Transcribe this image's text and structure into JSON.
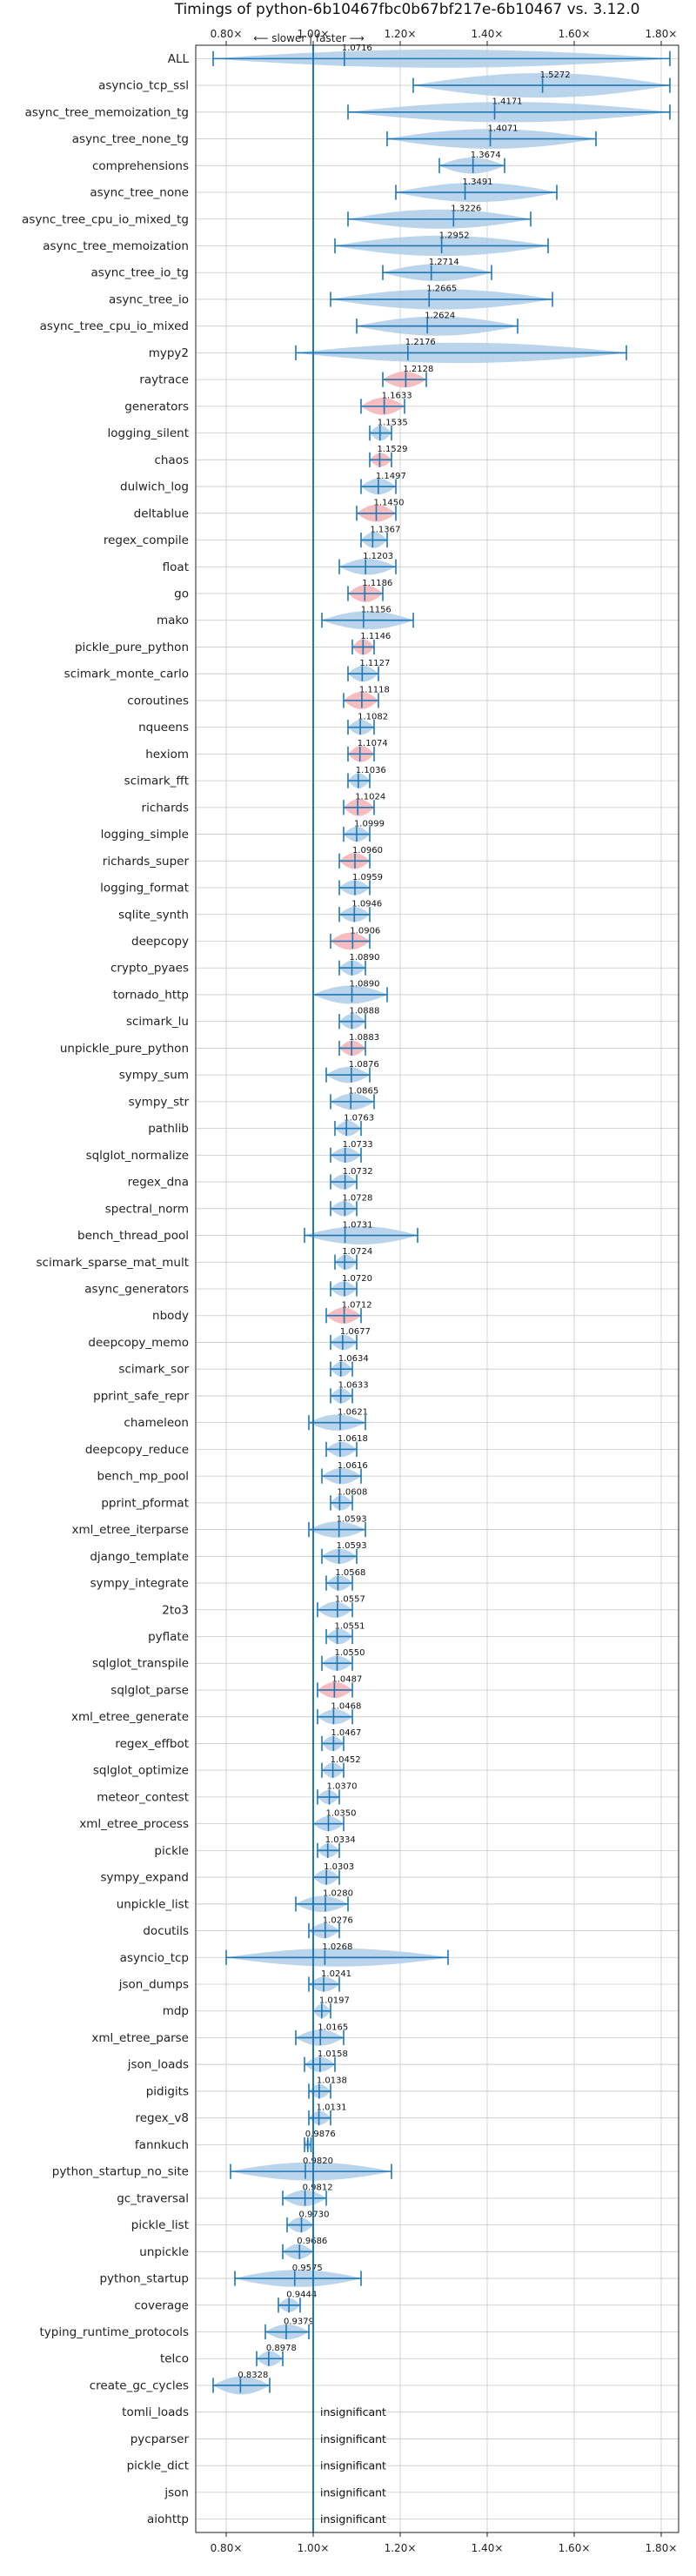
{
  "chart_data": {
    "type": "violin",
    "title": "Timings of python-6b10467fbc0b67bf217e-6b10467 vs. 3.12.0",
    "direction_annotation": "⟵ slower | faster ⟶",
    "xlim": [
      0.73,
      1.84
    ],
    "xticks": [
      0.8,
      1.0,
      1.2,
      1.4,
      1.6,
      1.8
    ],
    "xtick_labels": [
      "0.80×",
      "1.00×",
      "1.20×",
      "1.40×",
      "1.60×",
      "1.80×"
    ],
    "reference_line": 1.0,
    "grid": true,
    "colors": {
      "violin": "#aecde8",
      "violin_highlight": "#f4b0b4",
      "whisker": "#1f77b4",
      "reference": "#1f77b4",
      "grid": "#c8c8c8"
    },
    "insignificant_label": "insignificant",
    "benchmarks": [
      {
        "name": "ALL",
        "value": 1.0716,
        "label": "1.0716",
        "lo": 0.77,
        "hi": 1.82,
        "spread": 0.34
      },
      {
        "name": "asyncio_tcp_ssl",
        "value": 1.5272,
        "label": "1.5272",
        "lo": 1.23,
        "hi": 1.82,
        "spread": 0.46
      },
      {
        "name": "async_tree_memoization_tg",
        "value": 1.4171,
        "label": "1.4171",
        "lo": 1.08,
        "hi": 1.82,
        "spread": 0.38
      },
      {
        "name": "async_tree_none_tg",
        "value": 1.4071,
        "label": "1.4071",
        "lo": 1.17,
        "hi": 1.65,
        "spread": 0.37
      },
      {
        "name": "comprehensions",
        "value": 1.3674,
        "label": "1.3674",
        "lo": 1.29,
        "hi": 1.44,
        "spread": 0.3
      },
      {
        "name": "async_tree_none",
        "value": 1.3491,
        "label": "1.3491",
        "lo": 1.19,
        "hi": 1.56,
        "spread": 0.36
      },
      {
        "name": "async_tree_cpu_io_mixed_tg",
        "value": 1.3226,
        "label": "1.3226",
        "lo": 1.08,
        "hi": 1.5,
        "spread": 0.36
      },
      {
        "name": "async_tree_memoization",
        "value": 1.2952,
        "label": "1.2952",
        "lo": 1.05,
        "hi": 1.54,
        "spread": 0.38
      },
      {
        "name": "async_tree_io_tg",
        "value": 1.2714,
        "label": "1.2714",
        "lo": 1.16,
        "hi": 1.41,
        "spread": 0.32
      },
      {
        "name": "async_tree_io",
        "value": 1.2665,
        "label": "1.2665",
        "lo": 1.04,
        "hi": 1.55,
        "spread": 0.38
      },
      {
        "name": "async_tree_cpu_io_mixed",
        "value": 1.2624,
        "label": "1.2624",
        "lo": 1.1,
        "hi": 1.47,
        "spread": 0.36
      },
      {
        "name": "mypy2",
        "value": 1.2176,
        "label": "1.2176",
        "lo": 0.96,
        "hi": 1.72,
        "spread": 0.38
      },
      {
        "name": "raytrace",
        "value": 1.2128,
        "label": "1.2128",
        "lo": 1.16,
        "hi": 1.26,
        "spread": 0.3,
        "highlight": true
      },
      {
        "name": "generators",
        "value": 1.1633,
        "label": "1.1633",
        "lo": 1.11,
        "hi": 1.21,
        "spread": 0.32,
        "highlight": true
      },
      {
        "name": "logging_silent",
        "value": 1.1535,
        "label": "1.1535",
        "lo": 1.13,
        "hi": 1.18,
        "spread": 0.28
      },
      {
        "name": "chaos",
        "value": 1.1529,
        "label": "1.1529",
        "lo": 1.13,
        "hi": 1.18,
        "spread": 0.26,
        "highlight": true
      },
      {
        "name": "dulwich_log",
        "value": 1.1497,
        "label": "1.1497",
        "lo": 1.11,
        "hi": 1.19,
        "spread": 0.3
      },
      {
        "name": "deltablue",
        "value": 1.145,
        "label": "1.1450",
        "lo": 1.1,
        "hi": 1.19,
        "spread": 0.32,
        "highlight": true
      },
      {
        "name": "regex_compile",
        "value": 1.1367,
        "label": "1.1367",
        "lo": 1.11,
        "hi": 1.17,
        "spread": 0.3
      },
      {
        "name": "float",
        "value": 1.1203,
        "label": "1.1203",
        "lo": 1.06,
        "hi": 1.19,
        "spread": 0.3
      },
      {
        "name": "go",
        "value": 1.1186,
        "label": "1.1186",
        "lo": 1.08,
        "hi": 1.16,
        "spread": 0.32,
        "highlight": true
      },
      {
        "name": "mako",
        "value": 1.1156,
        "label": "1.1156",
        "lo": 1.02,
        "hi": 1.23,
        "spread": 0.34
      },
      {
        "name": "pickle_pure_python",
        "value": 1.1146,
        "label": "1.1146",
        "lo": 1.09,
        "hi": 1.14,
        "spread": 0.3,
        "highlight": true
      },
      {
        "name": "scimark_monte_carlo",
        "value": 1.1127,
        "label": "1.1127",
        "lo": 1.08,
        "hi": 1.15,
        "spread": 0.3
      },
      {
        "name": "coroutines",
        "value": 1.1118,
        "label": "1.1118",
        "lo": 1.07,
        "hi": 1.15,
        "spread": 0.32,
        "highlight": true
      },
      {
        "name": "nqueens",
        "value": 1.1082,
        "label": "1.1082",
        "lo": 1.08,
        "hi": 1.14,
        "spread": 0.28
      },
      {
        "name": "hexiom",
        "value": 1.1074,
        "label": "1.1074",
        "lo": 1.08,
        "hi": 1.14,
        "spread": 0.3,
        "highlight": true
      },
      {
        "name": "scimark_fft",
        "value": 1.1036,
        "label": "1.1036",
        "lo": 1.08,
        "hi": 1.13,
        "spread": 0.28
      },
      {
        "name": "richards",
        "value": 1.1024,
        "label": "1.1024",
        "lo": 1.07,
        "hi": 1.14,
        "spread": 0.32,
        "highlight": true
      },
      {
        "name": "logging_simple",
        "value": 1.0999,
        "label": "1.0999",
        "lo": 1.07,
        "hi": 1.13,
        "spread": 0.28
      },
      {
        "name": "richards_super",
        "value": 1.096,
        "label": "1.0960",
        "lo": 1.06,
        "hi": 1.13,
        "spread": 0.3,
        "highlight": true
      },
      {
        "name": "logging_format",
        "value": 1.0959,
        "label": "1.0959",
        "lo": 1.06,
        "hi": 1.13,
        "spread": 0.28
      },
      {
        "name": "sqlite_synth",
        "value": 1.0946,
        "label": "1.0946",
        "lo": 1.06,
        "hi": 1.13,
        "spread": 0.28
      },
      {
        "name": "deepcopy",
        "value": 1.0906,
        "label": "1.0906",
        "lo": 1.04,
        "hi": 1.13,
        "spread": 0.32,
        "highlight": true
      },
      {
        "name": "crypto_pyaes",
        "value": 1.089,
        "label": "1.0890",
        "lo": 1.06,
        "hi": 1.12,
        "spread": 0.28
      },
      {
        "name": "tornado_http",
        "value": 1.089,
        "label": "1.0890",
        "lo": 1.0,
        "hi": 1.17,
        "spread": 0.34
      },
      {
        "name": "scimark_lu",
        "value": 1.0888,
        "label": "1.0888",
        "lo": 1.06,
        "hi": 1.12,
        "spread": 0.28
      },
      {
        "name": "unpickle_pure_python",
        "value": 1.0883,
        "label": "1.0883",
        "lo": 1.06,
        "hi": 1.12,
        "spread": 0.28,
        "highlight": true
      },
      {
        "name": "sympy_sum",
        "value": 1.0876,
        "label": "1.0876",
        "lo": 1.03,
        "hi": 1.13,
        "spread": 0.3
      },
      {
        "name": "sympy_str",
        "value": 1.0865,
        "label": "1.0865",
        "lo": 1.04,
        "hi": 1.14,
        "spread": 0.3
      },
      {
        "name": "pathlib",
        "value": 1.0763,
        "label": "1.0763",
        "lo": 1.05,
        "hi": 1.11,
        "spread": 0.28
      },
      {
        "name": "sqlglot_normalize",
        "value": 1.0733,
        "label": "1.0733",
        "lo": 1.04,
        "hi": 1.11,
        "spread": 0.28
      },
      {
        "name": "regex_dna",
        "value": 1.0732,
        "label": "1.0732",
        "lo": 1.04,
        "hi": 1.1,
        "spread": 0.28
      },
      {
        "name": "spectral_norm",
        "value": 1.0728,
        "label": "1.0728",
        "lo": 1.04,
        "hi": 1.1,
        "spread": 0.28
      },
      {
        "name": "bench_thread_pool",
        "value": 1.0731,
        "label": "1.0731",
        "lo": 0.98,
        "hi": 1.24,
        "spread": 0.34
      },
      {
        "name": "scimark_sparse_mat_mult",
        "value": 1.0724,
        "label": "1.0724",
        "lo": 1.05,
        "hi": 1.1,
        "spread": 0.28
      },
      {
        "name": "async_generators",
        "value": 1.072,
        "label": "1.0720",
        "lo": 1.04,
        "hi": 1.1,
        "spread": 0.28
      },
      {
        "name": "nbody",
        "value": 1.0712,
        "label": "1.0712",
        "lo": 1.03,
        "hi": 1.11,
        "spread": 0.3,
        "highlight": true
      },
      {
        "name": "deepcopy_memo",
        "value": 1.0677,
        "label": "1.0677",
        "lo": 1.04,
        "hi": 1.1,
        "spread": 0.28
      },
      {
        "name": "scimark_sor",
        "value": 1.0634,
        "label": "1.0634",
        "lo": 1.04,
        "hi": 1.09,
        "spread": 0.28
      },
      {
        "name": "pprint_safe_repr",
        "value": 1.0633,
        "label": "1.0633",
        "lo": 1.04,
        "hi": 1.09,
        "spread": 0.28
      },
      {
        "name": "chameleon",
        "value": 1.0621,
        "label": "1.0621",
        "lo": 0.99,
        "hi": 1.12,
        "spread": 0.3
      },
      {
        "name": "deepcopy_reduce",
        "value": 1.0618,
        "label": "1.0618",
        "lo": 1.03,
        "hi": 1.1,
        "spread": 0.28
      },
      {
        "name": "bench_mp_pool",
        "value": 1.0616,
        "label": "1.0616",
        "lo": 1.02,
        "hi": 1.11,
        "spread": 0.3
      },
      {
        "name": "pprint_pformat",
        "value": 1.0608,
        "label": "1.0608",
        "lo": 1.04,
        "hi": 1.09,
        "spread": 0.28
      },
      {
        "name": "xml_etree_iterparse",
        "value": 1.0593,
        "label": "1.0593",
        "lo": 0.99,
        "hi": 1.12,
        "spread": 0.3
      },
      {
        "name": "django_template",
        "value": 1.0593,
        "label": "1.0593",
        "lo": 1.02,
        "hi": 1.1,
        "spread": 0.28
      },
      {
        "name": "sympy_integrate",
        "value": 1.0568,
        "label": "1.0568",
        "lo": 1.03,
        "hi": 1.09,
        "spread": 0.28
      },
      {
        "name": "2to3",
        "value": 1.0557,
        "label": "1.0557",
        "lo": 1.01,
        "hi": 1.09,
        "spread": 0.3
      },
      {
        "name": "pyflate",
        "value": 1.0551,
        "label": "1.0551",
        "lo": 1.03,
        "hi": 1.09,
        "spread": 0.28
      },
      {
        "name": "sqlglot_transpile",
        "value": 1.055,
        "label": "1.0550",
        "lo": 1.02,
        "hi": 1.09,
        "spread": 0.28
      },
      {
        "name": "sqlglot_parse",
        "value": 1.0487,
        "label": "1.0487",
        "lo": 1.01,
        "hi": 1.09,
        "spread": 0.3,
        "highlight": true
      },
      {
        "name": "xml_etree_generate",
        "value": 1.0468,
        "label": "1.0468",
        "lo": 1.01,
        "hi": 1.09,
        "spread": 0.28
      },
      {
        "name": "regex_effbot",
        "value": 1.0467,
        "label": "1.0467",
        "lo": 1.02,
        "hi": 1.07,
        "spread": 0.28
      },
      {
        "name": "sqlglot_optimize",
        "value": 1.0452,
        "label": "1.0452",
        "lo": 1.02,
        "hi": 1.07,
        "spread": 0.28
      },
      {
        "name": "meteor_contest",
        "value": 1.037,
        "label": "1.0370",
        "lo": 1.01,
        "hi": 1.06,
        "spread": 0.26
      },
      {
        "name": "xml_etree_process",
        "value": 1.035,
        "label": "1.0350",
        "lo": 1.0,
        "hi": 1.07,
        "spread": 0.28
      },
      {
        "name": "pickle",
        "value": 1.0334,
        "label": "1.0334",
        "lo": 1.01,
        "hi": 1.06,
        "spread": 0.26
      },
      {
        "name": "sympy_expand",
        "value": 1.0303,
        "label": "1.0303",
        "lo": 1.0,
        "hi": 1.06,
        "spread": 0.28
      },
      {
        "name": "unpickle_list",
        "value": 1.028,
        "label": "1.0280",
        "lo": 0.96,
        "hi": 1.08,
        "spread": 0.3
      },
      {
        "name": "docutils",
        "value": 1.0276,
        "label": "1.0276",
        "lo": 0.99,
        "hi": 1.06,
        "spread": 0.28
      },
      {
        "name": "asyncio_tcp",
        "value": 1.0268,
        "label": "1.0268",
        "lo": 0.8,
        "hi": 1.31,
        "spread": 0.34
      },
      {
        "name": "json_dumps",
        "value": 1.0241,
        "label": "1.0241",
        "lo": 0.99,
        "hi": 1.06,
        "spread": 0.28
      },
      {
        "name": "mdp",
        "value": 1.0197,
        "label": "1.0197",
        "lo": 1.0,
        "hi": 1.04,
        "spread": 0.26
      },
      {
        "name": "xml_etree_parse",
        "value": 1.0165,
        "label": "1.0165",
        "lo": 0.96,
        "hi": 1.07,
        "spread": 0.3
      },
      {
        "name": "json_loads",
        "value": 1.0158,
        "label": "1.0158",
        "lo": 0.98,
        "hi": 1.05,
        "spread": 0.28
      },
      {
        "name": "pidigits",
        "value": 1.0138,
        "label": "1.0138",
        "lo": 0.99,
        "hi": 1.04,
        "spread": 0.26
      },
      {
        "name": "regex_v8",
        "value": 1.0131,
        "label": "1.0131",
        "lo": 0.99,
        "hi": 1.04,
        "spread": 0.26
      },
      {
        "name": "fannkuch",
        "value": 0.9876,
        "label": "0.9876",
        "lo": 0.98,
        "hi": 0.995,
        "spread": 0.2
      },
      {
        "name": "python_startup_no_site",
        "value": 0.982,
        "label": "0.9820",
        "lo": 0.81,
        "hi": 1.18,
        "spread": 0.34
      },
      {
        "name": "gc_traversal",
        "value": 0.9812,
        "label": "0.9812",
        "lo": 0.93,
        "hi": 1.03,
        "spread": 0.3
      },
      {
        "name": "pickle_list",
        "value": 0.973,
        "label": "0.9730",
        "lo": 0.94,
        "hi": 1.0,
        "spread": 0.28
      },
      {
        "name": "unpickle",
        "value": 0.9686,
        "label": "0.9686",
        "lo": 0.93,
        "hi": 1.0,
        "spread": 0.28
      },
      {
        "name": "python_startup",
        "value": 0.9575,
        "label": "0.9575",
        "lo": 0.82,
        "hi": 1.11,
        "spread": 0.32
      },
      {
        "name": "coverage",
        "value": 0.9444,
        "label": "0.9444",
        "lo": 0.92,
        "hi": 0.97,
        "spread": 0.26
      },
      {
        "name": "typing_runtime_protocols",
        "value": 0.9379,
        "label": "0.9379",
        "lo": 0.89,
        "hi": 0.99,
        "spread": 0.28
      },
      {
        "name": "telco",
        "value": 0.8978,
        "label": "0.8978",
        "lo": 0.87,
        "hi": 0.93,
        "spread": 0.28
      },
      {
        "name": "create_gc_cycles",
        "value": 0.8328,
        "label": "0.8328",
        "lo": 0.77,
        "hi": 0.9,
        "spread": 0.34
      },
      {
        "name": "tomli_loads",
        "insignificant": true
      },
      {
        "name": "pycparser",
        "insignificant": true
      },
      {
        "name": "pickle_dict",
        "insignificant": true
      },
      {
        "name": "json",
        "insignificant": true
      },
      {
        "name": "aiohttp",
        "insignificant": true
      }
    ]
  }
}
